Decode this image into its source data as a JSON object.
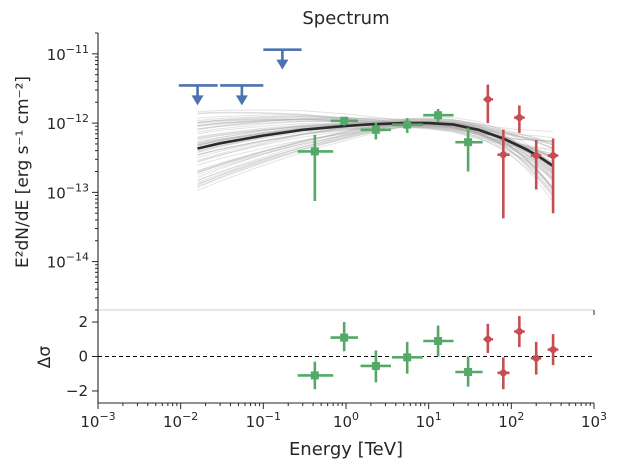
{
  "chart_data": {
    "title": "Spectrum",
    "xlabel": "Energy [TeV]",
    "x_scale": "log",
    "xlim": [
      0.001,
      1000
    ],
    "x_ticks": [
      {
        "value": 0.001,
        "label": "10−3"
      },
      {
        "value": 0.01,
        "label": "10−2"
      },
      {
        "value": 0.1,
        "label": "10−1"
      },
      {
        "value": 1,
        "label": "10⁰"
      },
      {
        "value": 10,
        "label": "10¹"
      },
      {
        "value": 100,
        "label": "10²"
      },
      {
        "value": 1000,
        "label": "10³"
      }
    ],
    "colors": {
      "blue": "#4c72b0",
      "green": "#55a868",
      "red": "#c44e52",
      "model": "#2b2b2b",
      "samples": "#b0b0b0"
    },
    "upper_panel": {
      "type": "scatter",
      "ylabel": "E²dN/dE [erg s⁻¹ cm⁻²]",
      "y_scale": "log",
      "ylim": [
        2e-15,
        2e-11
      ],
      "y_ticks": [
        {
          "value": 1e-11,
          "label": "10−11"
        },
        {
          "value": 1e-12,
          "label": "10−12"
        },
        {
          "value": 1e-13,
          "label": "10−13"
        },
        {
          "value": 1e-14,
          "label": "10−14"
        }
      ],
      "upper_limits": [
        {
          "x": 0.016,
          "x_low": 0.0095,
          "x_high": 0.028,
          "y": 3.5e-12
        },
        {
          "x": 0.055,
          "x_low": 0.03,
          "x_high": 0.1,
          "y": 3.5e-12
        },
        {
          "x": 0.17,
          "x_low": 0.1,
          "x_high": 0.29,
          "y": 1.15e-11
        }
      ],
      "green_points": [
        {
          "x": 0.42,
          "x_low": 0.26,
          "x_high": 0.7,
          "y": 3.9e-13,
          "y_low": 7.5e-14,
          "y_high": 6.8e-13
        },
        {
          "x": 0.95,
          "x_low": 0.65,
          "x_high": 1.4,
          "y": 1.08e-12,
          "y_low": 9.2e-13,
          "y_high": 1.23e-12
        },
        {
          "x": 2.3,
          "x_low": 1.5,
          "x_high": 3.5,
          "y": 8e-13,
          "y_low": 5.8e-13,
          "y_high": 1.02e-12
        },
        {
          "x": 5.5,
          "x_low": 3.6,
          "x_high": 8.5,
          "y": 9.5e-13,
          "y_low": 7.2e-13,
          "y_high": 1.18e-12
        },
        {
          "x": 13,
          "x_low": 8.6,
          "x_high": 20,
          "y": 1.3e-12,
          "y_low": 1.05e-12,
          "y_high": 1.6e-12
        },
        {
          "x": 30,
          "x_low": 21,
          "x_high": 45,
          "y": 5.3e-13,
          "y_low": 2e-13,
          "y_high": 8.6e-13
        }
      ],
      "red_points": [
        {
          "x": 52,
          "x_low": 46,
          "x_high": 60,
          "y": 2.2e-12,
          "y_low": 1e-12,
          "y_high": 3.6e-12
        },
        {
          "x": 80,
          "x_low": 68,
          "x_high": 95,
          "y": 3.5e-13,
          "y_low": 4.2e-14,
          "y_high": 8e-13
        },
        {
          "x": 125,
          "x_low": 108,
          "x_high": 145,
          "y": 1.2e-12,
          "y_low": 7.2e-13,
          "y_high": 1.8e-12
        },
        {
          "x": 200,
          "x_low": 172,
          "x_high": 230,
          "y": 3.4e-13,
          "y_low": 1.1e-13,
          "y_high": 5.7e-13
        },
        {
          "x": 320,
          "x_low": 275,
          "x_high": 370,
          "y": 3.4e-13,
          "y_low": 5e-14,
          "y_high": 6e-13
        }
      ],
      "model_line": {
        "x": [
          0.016,
          0.03,
          0.1,
          0.3,
          1,
          2,
          5,
          10,
          20,
          40,
          80,
          150,
          200,
          320
        ],
        "y": [
          4.3e-13,
          5.1e-13,
          6.6e-13,
          8e-13,
          9.1e-13,
          9.6e-13,
          1e-12,
          1e-12,
          9.5e-13,
          8e-13,
          6e-13,
          4.2e-13,
          3.5e-13,
          2.4e-13
        ]
      }
    },
    "lower_panel": {
      "type": "scatter",
      "ylabel": "Δσ",
      "ylim": [
        -2.7,
        2.7
      ],
      "y_ticks": [
        {
          "value": 2,
          "label": "2"
        },
        {
          "value": 0,
          "label": "0"
        },
        {
          "value": -2,
          "label": "−2"
        }
      ],
      "reference_line": 0,
      "green_points": [
        {
          "x": 0.42,
          "x_low": 0.26,
          "x_high": 0.7,
          "y": -1.1,
          "y_low": -1.9,
          "y_high": -0.3
        },
        {
          "x": 0.95,
          "x_low": 0.65,
          "x_high": 1.4,
          "y": 1.1,
          "y_low": 0.3,
          "y_high": 2.0
        },
        {
          "x": 2.3,
          "x_low": 1.5,
          "x_high": 3.5,
          "y": -0.55,
          "y_low": -1.5,
          "y_high": 0.35
        },
        {
          "x": 5.5,
          "x_low": 3.6,
          "x_high": 8.5,
          "y": -0.05,
          "y_low": -1.0,
          "y_high": 0.85
        },
        {
          "x": 13,
          "x_low": 8.6,
          "x_high": 20,
          "y": 0.9,
          "y_low": 0.0,
          "y_high": 1.8
        },
        {
          "x": 30,
          "x_low": 21,
          "x_high": 45,
          "y": -0.9,
          "y_low": -1.75,
          "y_high": 0.0
        }
      ],
      "red_points": [
        {
          "x": 52,
          "x_low": 46,
          "x_high": 60,
          "y": 1.0,
          "y_low": 0.2,
          "y_high": 1.9
        },
        {
          "x": 80,
          "x_low": 68,
          "x_high": 95,
          "y": -0.95,
          "y_low": -1.9,
          "y_high": -0.05
        },
        {
          "x": 125,
          "x_low": 108,
          "x_high": 145,
          "y": 1.45,
          "y_low": 0.55,
          "y_high": 2.35
        },
        {
          "x": 200,
          "x_low": 172,
          "x_high": 230,
          "y": -0.1,
          "y_low": -1.05,
          "y_high": 0.85
        },
        {
          "x": 320,
          "x_low": 275,
          "x_high": 370,
          "y": 0.4,
          "y_low": -0.5,
          "y_high": 1.3
        }
      ]
    }
  }
}
